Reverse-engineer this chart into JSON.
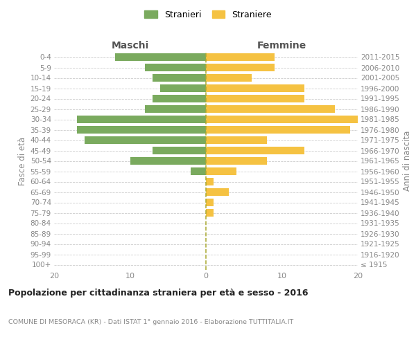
{
  "age_groups": [
    "100+",
    "95-99",
    "90-94",
    "85-89",
    "80-84",
    "75-79",
    "70-74",
    "65-69",
    "60-64",
    "55-59",
    "50-54",
    "45-49",
    "40-44",
    "35-39",
    "30-34",
    "25-29",
    "20-24",
    "15-19",
    "10-14",
    "5-9",
    "0-4"
  ],
  "birth_years": [
    "≤ 1915",
    "1916-1920",
    "1921-1925",
    "1926-1930",
    "1931-1935",
    "1936-1940",
    "1941-1945",
    "1946-1950",
    "1951-1955",
    "1956-1960",
    "1961-1965",
    "1966-1970",
    "1971-1975",
    "1976-1980",
    "1981-1985",
    "1986-1990",
    "1991-1995",
    "1996-2000",
    "2001-2005",
    "2006-2010",
    "2011-2015"
  ],
  "maschi": [
    0,
    0,
    0,
    0,
    0,
    0,
    0,
    0,
    0,
    2,
    10,
    7,
    16,
    17,
    17,
    8,
    7,
    6,
    7,
    8,
    12
  ],
  "femmine": [
    0,
    0,
    0,
    0,
    0,
    1,
    1,
    3,
    1,
    4,
    8,
    13,
    8,
    19,
    20,
    17,
    13,
    13,
    6,
    9,
    9
  ],
  "color_maschi": "#7aaa5e",
  "color_femmine": "#f5c242",
  "background_color": "#ffffff",
  "grid_color": "#cccccc",
  "title": "Popolazione per cittadinanza straniera per età e sesso - 2016",
  "subtitle": "COMUNE DI MESORACA (KR) - Dati ISTAT 1° gennaio 2016 - Elaborazione TUTTITALIA.IT",
  "ylabel_left": "Fasce di età",
  "ylabel_right": "Anni di nascita",
  "header_left": "Maschi",
  "header_right": "Femmine",
  "legend_maschi": "Stranieri",
  "legend_femmine": "Straniere",
  "xlim": 20,
  "dashed_line_color": "#a8a830"
}
